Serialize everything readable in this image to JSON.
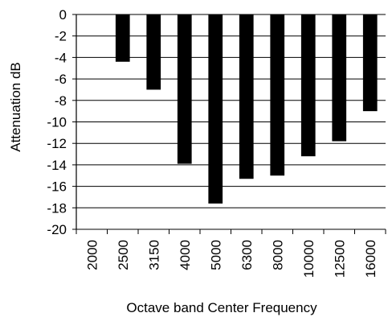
{
  "chart_data": {
    "type": "bar",
    "title": "",
    "xlabel": "Octave band Center Frequency",
    "ylabel": "Attenuation dB",
    "categories": [
      "2000",
      "2500",
      "3150",
      "4000",
      "5000",
      "6300",
      "8000",
      "10000",
      "12500",
      "16000"
    ],
    "values": [
      0,
      -4.4,
      -7,
      -13.9,
      -17.6,
      -15.3,
      -15,
      -13.2,
      -11.8,
      -9
    ],
    "ylim": [
      -20,
      0
    ],
    "yticks": [
      0,
      -2,
      -4,
      -6,
      -8,
      -10,
      -12,
      -14,
      -16,
      -18,
      -20
    ],
    "grid": true,
    "legend": "none",
    "bar_color": "#000000",
    "grid_color": "#000000"
  }
}
